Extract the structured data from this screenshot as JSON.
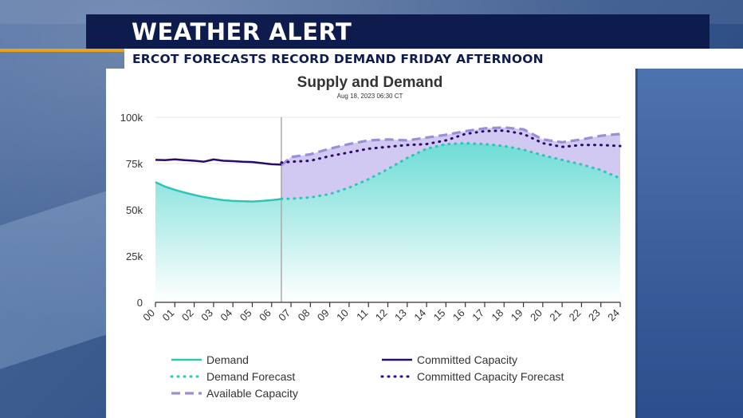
{
  "banner": {
    "title": "WEATHER ALERT",
    "subtitle": "ERCOT FORECASTS RECORD DEMAND FRIDAY AFTERNOON"
  },
  "colors": {
    "banner_bg": "#0e1b4d",
    "accent_orange": "#e8a21c",
    "demand": "#2ec4b6",
    "committed": "#2a0a6b",
    "available": "#9a8fd6",
    "available_fill": "#c9bfee"
  },
  "chart_data": {
    "type": "line",
    "title": "Supply and Demand",
    "subtitle": "Aug 18, 2023 06:30 CT",
    "xlabel": "",
    "ylabel": "",
    "xlim": [
      0,
      24
    ],
    "ylim": [
      0,
      100000
    ],
    "y_ticks": [
      0,
      25000,
      50000,
      75000,
      100000
    ],
    "y_tick_labels": [
      "0",
      "25k",
      "50k",
      "75k",
      "100k"
    ],
    "x_ticks": [
      0,
      1,
      2,
      3,
      4,
      5,
      6,
      7,
      8,
      9,
      10,
      11,
      12,
      13,
      14,
      15,
      16,
      17,
      18,
      19,
      20,
      21,
      22,
      23,
      24
    ],
    "x_tick_labels": [
      "00",
      "01",
      "02",
      "03",
      "04",
      "05",
      "06",
      "07",
      "08",
      "09",
      "10",
      "11",
      "12",
      "13",
      "14",
      "15",
      "16",
      "17",
      "18",
      "19",
      "20",
      "21",
      "22",
      "23",
      "24"
    ],
    "current_time_marker": 6.5,
    "grid": "horizontal",
    "legend_position": "bottom",
    "legend": [
      "Demand",
      "Demand Forecast",
      "Available Capacity",
      "Committed Capacity",
      "Committed Capacity Forecast"
    ],
    "series": [
      {
        "name": "Demand",
        "style": "solid",
        "x": [
          0,
          0.5,
          1,
          1.5,
          2,
          2.5,
          3,
          3.5,
          4,
          4.5,
          5,
          5.5,
          6,
          6.5
        ],
        "values": [
          65000,
          62500,
          60800,
          59300,
          58000,
          56900,
          56000,
          55200,
          54800,
          54600,
          54500,
          54800,
          55200,
          55800
        ]
      },
      {
        "name": "Demand Forecast",
        "style": "dotted",
        "x": [
          6.5,
          7,
          8,
          9,
          10,
          11,
          12,
          13,
          14,
          15,
          16,
          17,
          18,
          19,
          20,
          21,
          22,
          23,
          24
        ],
        "values": [
          56000,
          56000,
          56700,
          58500,
          62000,
          66500,
          72000,
          78000,
          83000,
          85500,
          86000,
          85500,
          84500,
          82500,
          79500,
          77000,
          74500,
          71500,
          67000
        ]
      },
      {
        "name": "Available Capacity",
        "style": "dashed",
        "x": [
          6.5,
          7,
          8,
          9,
          10,
          11,
          12,
          13,
          14,
          15,
          16,
          17,
          18,
          19,
          20,
          21,
          22,
          23,
          24
        ],
        "values": [
          74000,
          78500,
          80000,
          83000,
          85500,
          87500,
          88000,
          87500,
          89000,
          90500,
          92500,
          94000,
          94500,
          93500,
          88000,
          86500,
          88000,
          90000,
          91000
        ]
      },
      {
        "name": "Committed Capacity",
        "style": "solid",
        "x": [
          0,
          0.5,
          1,
          1.5,
          2,
          2.5,
          3,
          3.5,
          4,
          4.5,
          5,
          5.5,
          6,
          6.5
        ],
        "values": [
          77000,
          76800,
          77300,
          76800,
          76500,
          76000,
          77200,
          76500,
          76300,
          76000,
          75800,
          75200,
          74600,
          74400
        ]
      },
      {
        "name": "Committed Capacity Forecast",
        "style": "dotted",
        "x": [
          6.5,
          7,
          8,
          9,
          10,
          11,
          12,
          13,
          14,
          15,
          16,
          17,
          18,
          19,
          20,
          21,
          22,
          23,
          24
        ],
        "values": [
          75500,
          76000,
          76500,
          79000,
          81000,
          83000,
          84000,
          85000,
          85500,
          87500,
          91000,
          92500,
          92800,
          91000,
          86000,
          84000,
          85000,
          85000,
          84500
        ]
      }
    ]
  }
}
